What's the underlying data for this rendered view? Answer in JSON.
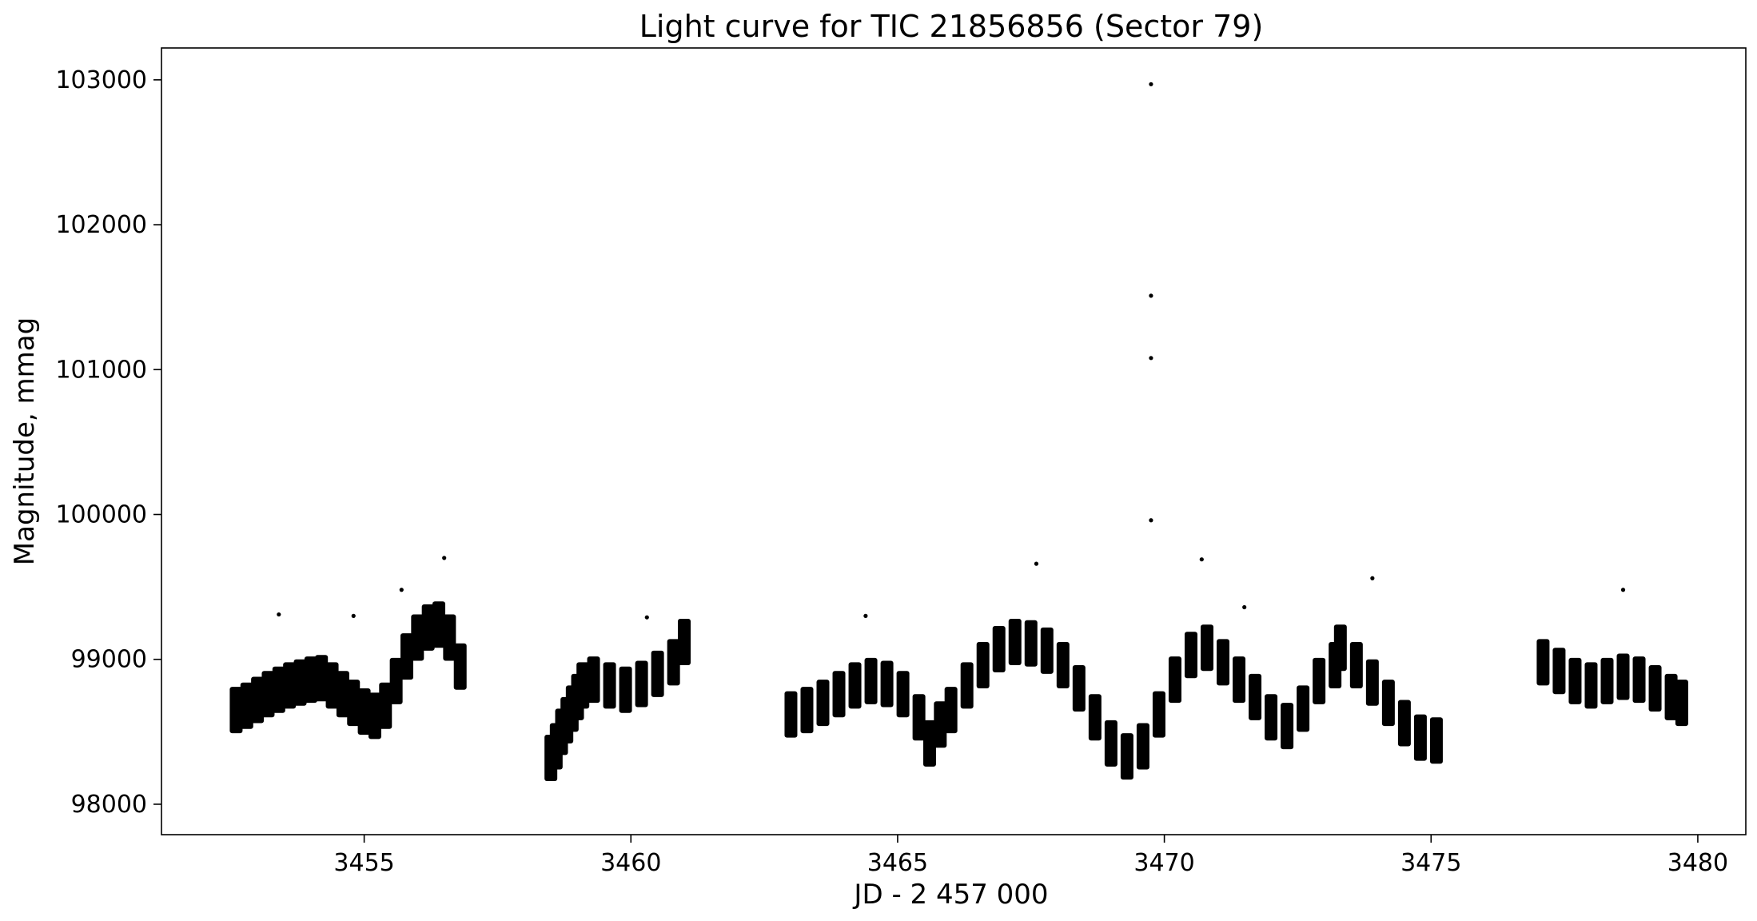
{
  "chart_data": {
    "type": "scatter",
    "title": "Light curve for TIC 21856856 (Sector 79)",
    "xlabel": "JD - 2 457 000",
    "ylabel": "Magnitude, mmag",
    "xlim": [
      3451.2,
      3480.9
    ],
    "ylim": [
      97790,
      103220
    ],
    "xticks": [
      {
        "value": 3455,
        "label": "3455"
      },
      {
        "value": 3460,
        "label": "3460"
      },
      {
        "value": 3465,
        "label": "3465"
      },
      {
        "value": 3470,
        "label": "3470"
      },
      {
        "value": 3475,
        "label": "3475"
      },
      {
        "value": 3480,
        "label": "3480"
      }
    ],
    "yticks": [
      {
        "value": 98000,
        "label": "98000"
      },
      {
        "value": 99000,
        "label": "99000"
      },
      {
        "value": 100000,
        "label": "100000"
      },
      {
        "value": 101000,
        "label": "101000"
      },
      {
        "value": 102000,
        "label": "102000"
      },
      {
        "value": 103000,
        "label": "103000"
      }
    ],
    "grid": false,
    "marker_color": "#000000",
    "series": [
      {
        "x": [
          3452.6,
          3452.8,
          3453.0,
          3453.2,
          3453.4,
          3453.6,
          3453.8,
          3454.0,
          3454.2,
          3454.4,
          3454.6,
          3454.8,
          3455.0,
          3455.2,
          3455.4,
          3455.6,
          3455.8,
          3456.0,
          3456.2,
          3456.4,
          3456.6,
          3456.8,
          3458.5,
          3458.6,
          3458.7,
          3458.8,
          3458.9,
          3459.0,
          3459.1,
          3459.3,
          3459.6,
          3459.9,
          3460.2,
          3460.5,
          3460.8,
          3461.0,
          3463.0,
          3463.3,
          3463.6,
          3463.9,
          3464.2,
          3464.5,
          3464.8,
          3465.1,
          3465.4,
          3465.6,
          3465.8,
          3466.0,
          3466.3,
          3466.6,
          3466.9,
          3467.2,
          3467.5,
          3467.8,
          3468.1,
          3468.4,
          3468.7,
          3469.0,
          3469.3,
          3469.6,
          3469.9,
          3470.2,
          3470.5,
          3470.8,
          3471.1,
          3471.4,
          3471.7,
          3472.0,
          3472.3,
          3472.6,
          3472.9,
          3473.2,
          3473.3,
          3473.6,
          3473.9,
          3474.2,
          3474.5,
          3474.8,
          3475.1,
          3477.1,
          3477.4,
          3477.7,
          3478.0,
          3478.3,
          3478.6,
          3478.9,
          3479.2,
          3479.5,
          3479.7
        ],
        "y": [
          98650,
          98680,
          98720,
          98760,
          98790,
          98820,
          98840,
          98860,
          98870,
          98820,
          98760,
          98700,
          98640,
          98610,
          98680,
          98850,
          99020,
          99150,
          99220,
          99240,
          99150,
          98950,
          98320,
          98400,
          98500,
          98580,
          98660,
          98740,
          98820,
          98860,
          98820,
          98790,
          98830,
          98900,
          98980,
          99120,
          98620,
          98650,
          98700,
          98760,
          98820,
          98850,
          98830,
          98760,
          98600,
          98420,
          98550,
          98650,
          98820,
          98960,
          99070,
          99120,
          99110,
          99060,
          98960,
          98800,
          98600,
          98420,
          98330,
          98400,
          98620,
          98860,
          99030,
          99080,
          98980,
          98860,
          98740,
          98600,
          98540,
          98660,
          98850,
          98960,
          99080,
          98960,
          98840,
          98700,
          98560,
          98460,
          98440,
          98980,
          98920,
          98850,
          98820,
          98850,
          98880,
          98860,
          98800,
          98740,
          98700
        ],
        "spread": 160
      },
      {
        "x": [
          3469.75,
          3469.75,
          3469.75,
          3469.75,
          3455.7,
          3456.5,
          3467.6,
          3470.7,
          3473.9,
          3478.6,
          3453.4,
          3454.8,
          3460.3,
          3464.4,
          3471.5
        ],
        "y": [
          102970,
          101510,
          101080,
          99960,
          99480,
          99700,
          99660,
          99690,
          99560,
          99480,
          99310,
          99300,
          99290,
          99300,
          99360
        ]
      }
    ]
  }
}
